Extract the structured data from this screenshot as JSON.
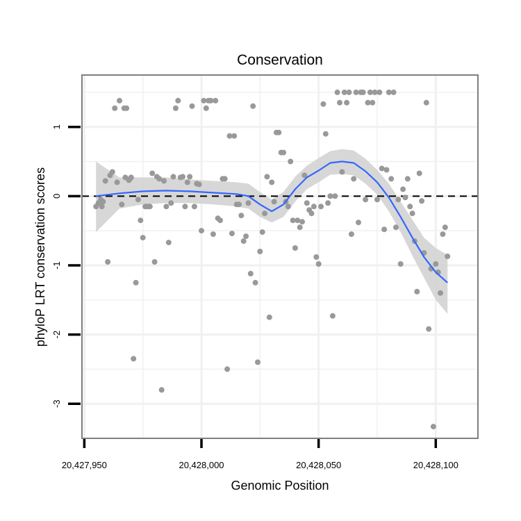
{
  "colors": {
    "background": "#ffffff",
    "panel_border": "#7f7f7f",
    "grid": "#f0f0f0",
    "points": "#999999",
    "smooth_line": "#3366ff",
    "ribbon": "#d3d3d3",
    "reference_line": "#000000"
  },
  "chart_data": {
    "type": "scatter",
    "title": "Conservation",
    "xlabel": "Genomic Position",
    "ylabel": "phyloP LRT conservation scores",
    "xlim": [
      20427949,
      20428118
    ],
    "ylim": [
      -3.5,
      1.75
    ],
    "x_ticks": [
      20427950,
      20428000,
      20428050,
      20428100
    ],
    "x_tick_labels": [
      "20,427,950",
      "20,428,000",
      "20,428,050",
      "20,428,100"
    ],
    "y_ticks": [
      -3,
      -2,
      -1,
      0,
      1
    ],
    "y_tick_labels": [
      "-3",
      "-2",
      "-1",
      "0",
      "1"
    ],
    "grid": true,
    "legend": "none",
    "reference_line": {
      "y": 0,
      "style": "dashed"
    },
    "points": [
      [
        20427955,
        -0.15
      ],
      [
        20427956,
        -0.1
      ],
      [
        20427957,
        -0.05
      ],
      [
        20427957.5,
        -0.15
      ],
      [
        20427958,
        -0.08
      ],
      [
        20427959,
        0.22
      ],
      [
        20427960,
        -0.95
      ],
      [
        20427961,
        0.3
      ],
      [
        20427962,
        0.35
      ],
      [
        20427963,
        1.27
      ],
      [
        20427964,
        0.2
      ],
      [
        20427965,
        1.38
      ],
      [
        20427966,
        -0.12
      ],
      [
        20427967,
        1.27
      ],
      [
        20427967.5,
        0.27
      ],
      [
        20427968,
        1.27
      ],
      [
        20427969,
        0.23
      ],
      [
        20427969.5,
        0.25
      ],
      [
        20427970,
        0.27
      ],
      [
        20427971,
        -2.35
      ],
      [
        20427972,
        -1.25
      ],
      [
        20427973,
        -0.05
      ],
      [
        20427974,
        -0.35
      ],
      [
        20427975,
        -0.6
      ],
      [
        20427976,
        -0.15
      ],
      [
        20427977,
        -0.15
      ],
      [
        20427978,
        -0.15
      ],
      [
        20427979,
        0.33
      ],
      [
        20427980,
        -0.95
      ],
      [
        20427981,
        0.28
      ],
      [
        20427982,
        0.25
      ],
      [
        20427983,
        -2.8
      ],
      [
        20427984,
        0.22
      ],
      [
        20427985,
        -0.15
      ],
      [
        20427986,
        -0.67
      ],
      [
        20427987,
        -0.1
      ],
      [
        20427988,
        0.28
      ],
      [
        20427989,
        1.27
      ],
      [
        20427990,
        1.38
      ],
      [
        20427991,
        0.27
      ],
      [
        20427992,
        0.28
      ],
      [
        20427993,
        -0.15
      ],
      [
        20427994,
        0.2
      ],
      [
        20427995,
        0.28
      ],
      [
        20427996,
        1.3
      ],
      [
        20427997,
        -0.15
      ],
      [
        20427998,
        0.18
      ],
      [
        20427999,
        0.17
      ],
      [
        20428000,
        -0.5
      ],
      [
        20428001,
        1.38
      ],
      [
        20428002,
        1.27
      ],
      [
        20428003,
        1.38
      ],
      [
        20428004,
        1.38
      ],
      [
        20428005,
        -0.55
      ],
      [
        20428006,
        1.38
      ],
      [
        20428007,
        -0.32
      ],
      [
        20428008,
        -0.35
      ],
      [
        20428009,
        0.25
      ],
      [
        20428010,
        0.25
      ],
      [
        20428011,
        -2.5
      ],
      [
        20428012,
        0.87
      ],
      [
        20428013,
        -0.54
      ],
      [
        20428014,
        0.87
      ],
      [
        20428015,
        -0.12
      ],
      [
        20428016,
        -0.12
      ],
      [
        20428017,
        -0.28
      ],
      [
        20428018,
        -0.65
      ],
      [
        20428019,
        -0.58
      ],
      [
        20428020,
        -0.1
      ],
      [
        20428021,
        -1.12
      ],
      [
        20428022,
        1.3
      ],
      [
        20428023,
        -1.25
      ],
      [
        20428024,
        -2.4
      ],
      [
        20428025,
        -0.8
      ],
      [
        20428026,
        -0.52
      ],
      [
        20428027,
        -0.25
      ],
      [
        20428028,
        0.28
      ],
      [
        20428029,
        -1.75
      ],
      [
        20428030,
        0.2
      ],
      [
        20428031,
        -0.08
      ],
      [
        20428032,
        0.92
      ],
      [
        20428033,
        0.92
      ],
      [
        20428034,
        0.63
      ],
      [
        20428035,
        0.63
      ],
      [
        20428036,
        -0.08
      ],
      [
        20428037,
        -0.15
      ],
      [
        20428038,
        0.5
      ],
      [
        20428039,
        -0.35
      ],
      [
        20428040,
        -0.75
      ],
      [
        20428041,
        -0.35
      ],
      [
        20428042,
        -0.45
      ],
      [
        20428043,
        -0.37
      ],
      [
        20428044,
        0.3
      ],
      [
        20428045,
        -0.1
      ],
      [
        20428046,
        -0.2
      ],
      [
        20428047,
        -0.25
      ],
      [
        20428048,
        -0.15
      ],
      [
        20428049,
        -0.88
      ],
      [
        20428050,
        -0.98
      ],
      [
        20428051,
        -0.15
      ],
      [
        20428052,
        1.33
      ],
      [
        20428053,
        0.9
      ],
      [
        20428054,
        -0.1
      ],
      [
        20428055,
        0.0
      ],
      [
        20428056,
        -1.73
      ],
      [
        20428057,
        0.0
      ],
      [
        20428058,
        1.5
      ],
      [
        20428059,
        1.35
      ],
      [
        20428060,
        0.35
      ],
      [
        20428061,
        1.5
      ],
      [
        20428062,
        1.35
      ],
      [
        20428063,
        1.5
      ],
      [
        20428064,
        -0.55
      ],
      [
        20428065,
        0.25
      ],
      [
        20428066,
        1.5
      ],
      [
        20428067,
        -0.38
      ],
      [
        20428068,
        1.5
      ],
      [
        20428069,
        1.5
      ],
      [
        20428070,
        -0.05
      ],
      [
        20428071,
        1.35
      ],
      [
        20428072,
        1.5
      ],
      [
        20428073,
        1.35
      ],
      [
        20428074,
        1.5
      ],
      [
        20428075,
        -0.05
      ],
      [
        20428076,
        1.5
      ],
      [
        20428077,
        0.4
      ],
      [
        20428078,
        -0.48
      ],
      [
        20428079,
        0.38
      ],
      [
        20428080,
        1.5
      ],
      [
        20428081,
        0.25
      ],
      [
        20428082,
        1.5
      ],
      [
        20428083,
        -0.45
      ],
      [
        20428084,
        -0.05
      ],
      [
        20428085,
        -0.98
      ],
      [
        20428086,
        0.1
      ],
      [
        20428087,
        -0.02
      ],
      [
        20428088,
        0.25
      ],
      [
        20428089,
        -0.15
      ],
      [
        20428090,
        -0.25
      ],
      [
        20428091,
        -0.65
      ],
      [
        20428092,
        -1.38
      ],
      [
        20428093,
        0.33
      ],
      [
        20428094,
        -0.07
      ],
      [
        20428095,
        -0.82
      ],
      [
        20428096,
        1.35
      ],
      [
        20428097,
        -1.92
      ],
      [
        20428098,
        -1.05
      ],
      [
        20428099,
        -3.33
      ],
      [
        20428100,
        -0.98
      ],
      [
        20428101,
        -1.1
      ],
      [
        20428102,
        -1.4
      ],
      [
        20428103,
        -0.55
      ],
      [
        20428104,
        -0.45
      ],
      [
        20428105,
        -0.87
      ]
    ],
    "smooth": {
      "method": "loess",
      "x": [
        20427955,
        20427965,
        20427975,
        20427985,
        20427995,
        20428005,
        20428015,
        20428020,
        20428025,
        20428030,
        20428035,
        20428040,
        20428045,
        20428050,
        20428055,
        20428060,
        20428065,
        20428070,
        20428075,
        20428080,
        20428085,
        20428090,
        20428095,
        20428100,
        20428105
      ],
      "y": [
        0.0,
        0.04,
        0.07,
        0.08,
        0.07,
        0.05,
        0.03,
        0.0,
        -0.12,
        -0.22,
        -0.12,
        0.1,
        0.27,
        0.37,
        0.48,
        0.5,
        0.48,
        0.36,
        0.2,
        -0.02,
        -0.3,
        -0.6,
        -0.88,
        -1.1,
        -1.25
      ],
      "lower": [
        -0.52,
        -0.18,
        -0.12,
        -0.1,
        -0.1,
        -0.12,
        -0.15,
        -0.18,
        -0.3,
        -0.38,
        -0.3,
        -0.08,
        0.1,
        0.2,
        0.31,
        0.32,
        0.3,
        0.18,
        0.02,
        -0.22,
        -0.52,
        -0.86,
        -1.18,
        -1.5,
        -1.7
      ],
      "upper": [
        0.5,
        0.27,
        0.27,
        0.27,
        0.24,
        0.22,
        0.2,
        0.18,
        0.06,
        -0.05,
        0.06,
        0.28,
        0.44,
        0.55,
        0.65,
        0.68,
        0.66,
        0.54,
        0.38,
        0.18,
        -0.08,
        -0.34,
        -0.6,
        -0.75,
        -0.85
      ]
    }
  }
}
